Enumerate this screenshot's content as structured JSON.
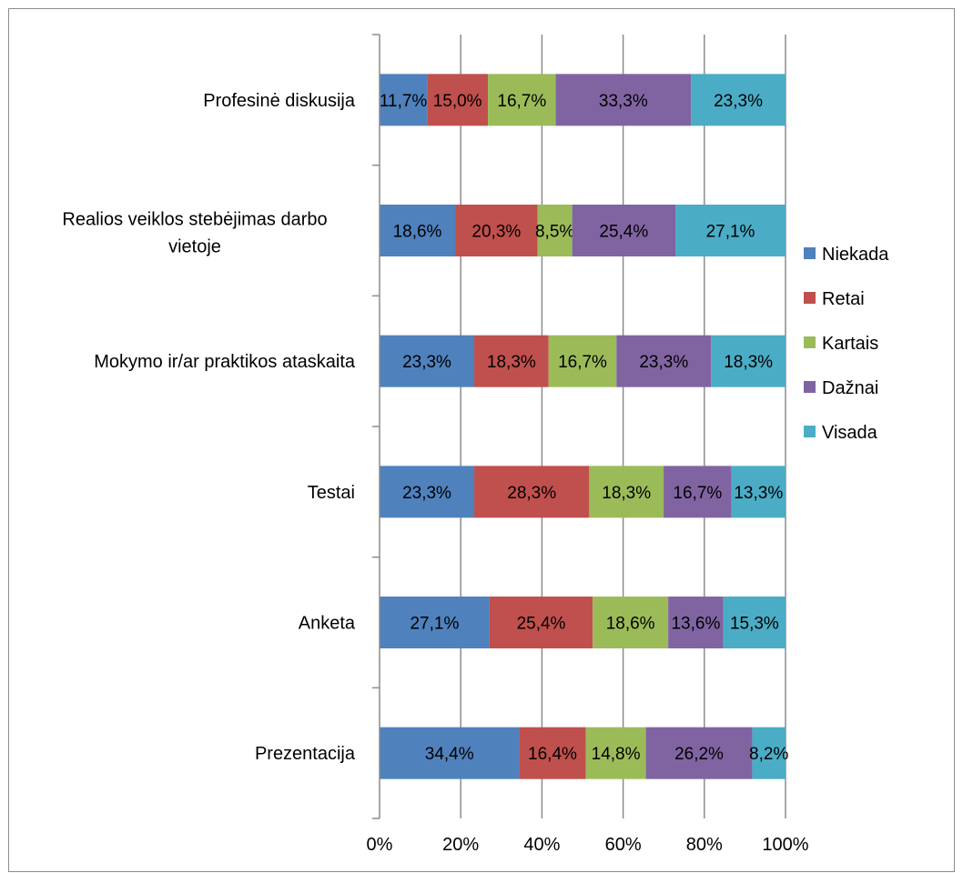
{
  "chart_data": {
    "type": "bar",
    "orientation": "horizontal",
    "stacked": "percent",
    "categories": [
      "Profesinė diskusija",
      "Realios veiklos stebėjimas darbo vietoje",
      "Mokymo ir/ar  praktikos ataskaita",
      "Testai",
      "Anketa",
      "Prezentacija"
    ],
    "series": [
      {
        "name": "Niekada",
        "color": "#4F81BD",
        "values": [
          11.7,
          18.6,
          23.3,
          23.3,
          27.1,
          34.4
        ],
        "labels": [
          "11,7%",
          "18,6%",
          "23,3%",
          "23,3%",
          "27,1%",
          "34,4%"
        ]
      },
      {
        "name": "Retai",
        "color": "#C0504D",
        "values": [
          15.0,
          20.3,
          18.3,
          28.3,
          25.4,
          16.4
        ],
        "labels": [
          "15,0%",
          "20,3%",
          "18,3%",
          "28,3%",
          "25,4%",
          "16,4%"
        ]
      },
      {
        "name": "Kartais",
        "color": "#9BBB59",
        "values": [
          16.7,
          8.5,
          16.7,
          18.3,
          18.6,
          14.8
        ],
        "labels": [
          "16,7%",
          "8,5%",
          "16,7%",
          "18,3%",
          "18,6%",
          "14,8%"
        ]
      },
      {
        "name": "Dažnai",
        "color": "#8064A2",
        "values": [
          33.3,
          25.4,
          23.3,
          16.7,
          13.6,
          26.2
        ],
        "labels": [
          "33,3%",
          "25,4%",
          "23,3%",
          "16,7%",
          "13,6%",
          "26,2%"
        ]
      },
      {
        "name": "Visada",
        "color": "#4BACC6",
        "values": [
          23.3,
          27.1,
          18.3,
          13.3,
          15.3,
          8.2
        ],
        "labels": [
          "23,3%",
          "27,1%",
          "18,3%",
          "13,3%",
          "15,3%",
          "8,2%"
        ]
      }
    ],
    "xticks": [
      "0%",
      "20%",
      "40%",
      "60%",
      "80%",
      "100%"
    ],
    "xlim": [
      0,
      100
    ],
    "grid": true,
    "legend": "right",
    "title": "",
    "xlabel": "",
    "ylabel": ""
  }
}
